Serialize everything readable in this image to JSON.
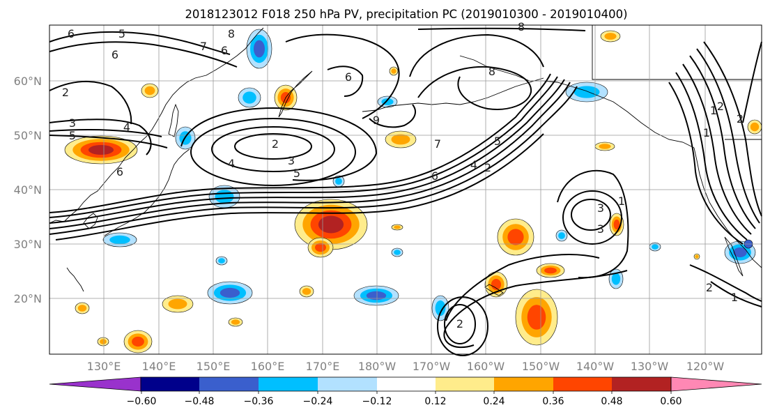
{
  "title": "2018123012 F018 250 hPa PV, precipitation PC (2019010300 - 2019010400)",
  "lat_labels": [
    "60°N",
    "50°N",
    "40°N",
    "30°N",
    "20°N"
  ],
  "lon_labels": [
    "130°E",
    "140°E",
    "150°E",
    "160°E",
    "170°E",
    "180°W",
    "170°W",
    "160°W",
    "150°W",
    "140°W",
    "130°W",
    "120°W"
  ],
  "colorbar": {
    "colors": [
      "#9932CC",
      "#00008B",
      "#3A5FCD",
      "#00BFFF",
      "#B2E1FF",
      "#FFFFFF",
      "#FFEC8B",
      "#FFA500",
      "#FF4500",
      "#B22222",
      "#FF88B4"
    ],
    "tick_labels": [
      "−0.60",
      "−0.48",
      "−0.36",
      "−0.24",
      "−0.12",
      "0.12",
      "0.24",
      "0.36",
      "0.48",
      "0.60"
    ]
  },
  "contour_labels": [
    "6",
    "5",
    "8",
    "7",
    "6",
    "6",
    "2",
    "3",
    "5",
    "4",
    "6",
    "2",
    "4",
    "3",
    "5",
    "8",
    "6",
    "9",
    "7",
    "5",
    "6",
    "4",
    "2",
    "3",
    "1",
    "3",
    "2",
    "1",
    "2",
    "1",
    "1",
    "2",
    "2",
    "8"
  ]
}
